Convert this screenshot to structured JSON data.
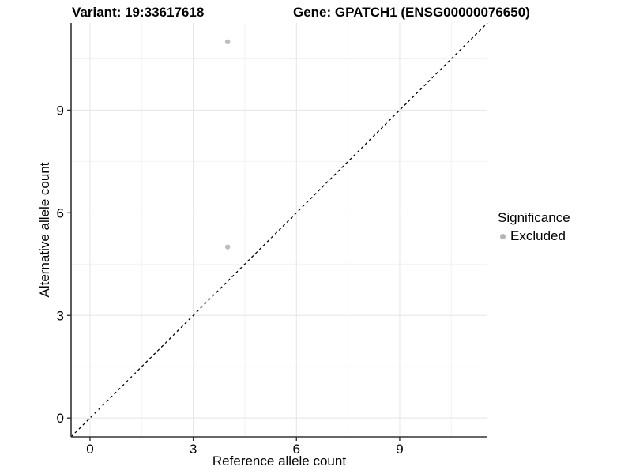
{
  "colors": {
    "background": "#ffffff",
    "point": "#bdbdbd",
    "grid_major": "#e5e5e5",
    "grid_minor": "#f2f2f2",
    "axis_line": "#333333",
    "text": "#000000",
    "ref_line": "#000000"
  },
  "chart_data": {
    "type": "scatter",
    "title": "Variant: 19:33617618",
    "subtitle": "Gene: GPATCH1 (ENSG00000076650)",
    "xlabel": "Reference allele count",
    "ylabel": "Alternative allele count",
    "xlim": [
      -0.55,
      11.55
    ],
    "ylim": [
      -0.55,
      11.55
    ],
    "xticks": [
      0,
      3,
      6,
      9
    ],
    "yticks": [
      0,
      3,
      6,
      9
    ],
    "xticks_minor": [
      1.5,
      4.5,
      7.5,
      10.5
    ],
    "yticks_minor": [
      1.5,
      4.5,
      7.5,
      10.5
    ],
    "grid": true,
    "points": [
      {
        "x": 4,
        "y": 11,
        "significance": "Excluded"
      },
      {
        "x": 4,
        "y": 5,
        "significance": "Excluded"
      }
    ],
    "reference_line": {
      "type": "identity",
      "slope": 1,
      "intercept": 0,
      "style": "dashed"
    },
    "legend": {
      "title": "Significance",
      "position": "right",
      "items": [
        {
          "label": "Excluded",
          "color": "#b5b5b5"
        }
      ]
    }
  }
}
